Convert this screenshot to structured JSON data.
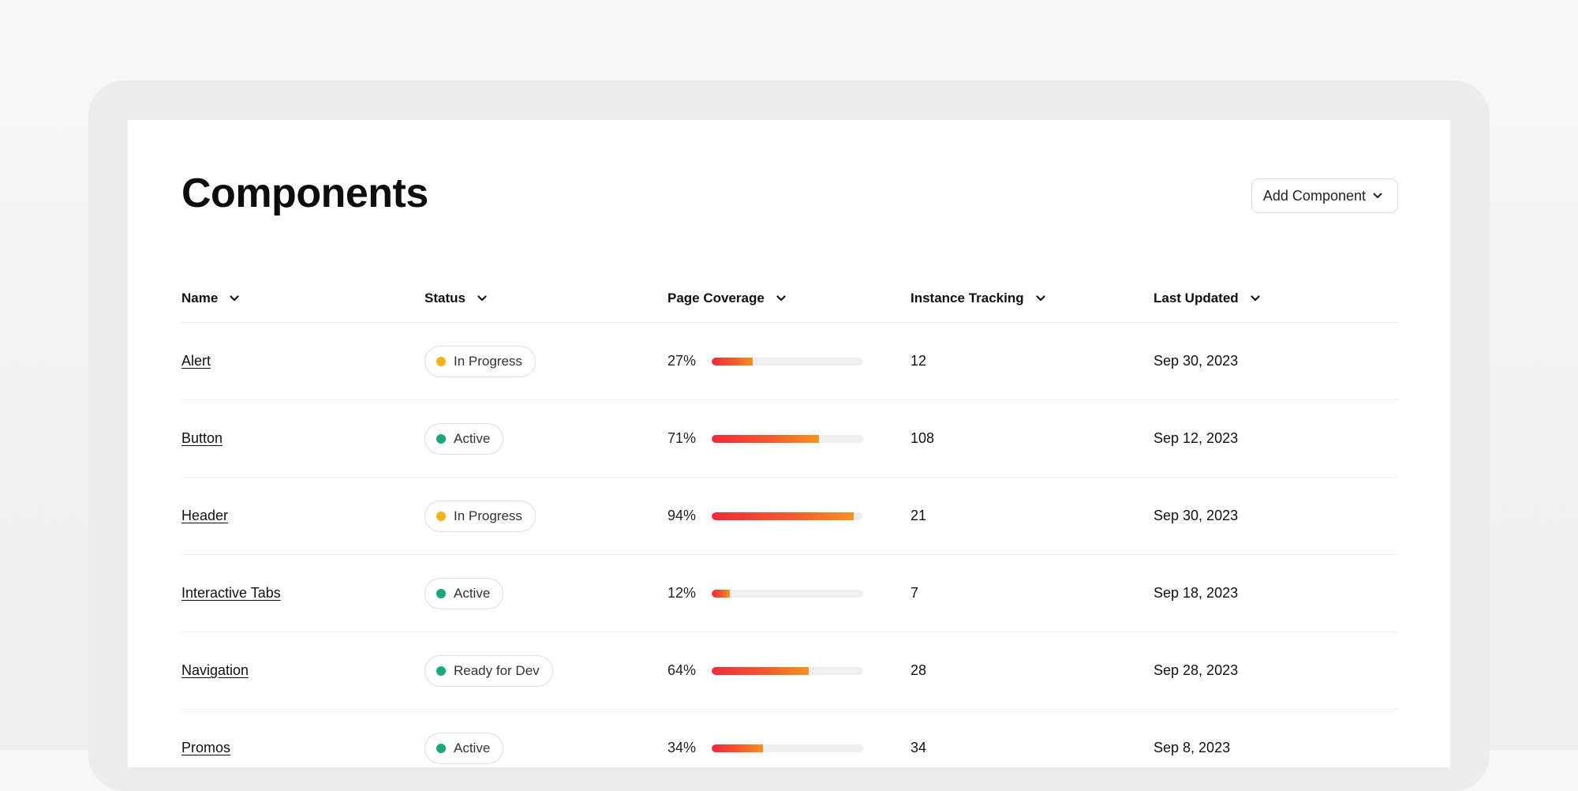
{
  "page": {
    "title": "Components",
    "add_button_label": "Add Component"
  },
  "colors": {
    "in_progress": "#f5b21a",
    "active": "#1aa878",
    "ready_for_dev": "#1aa878",
    "bar_start": "#ee2a3c",
    "bar_end": "#f6921e"
  },
  "table": {
    "columns": [
      {
        "label": "Name"
      },
      {
        "label": "Status"
      },
      {
        "label": "Page Coverage"
      },
      {
        "label": "Instance Tracking"
      },
      {
        "label": "Last Updated"
      }
    ],
    "rows": [
      {
        "name": "Alert",
        "status": "In Progress",
        "status_color": "#f5b21a",
        "coverage_label": "27%",
        "coverage": 27,
        "instances": "12",
        "updated": "Sep 30, 2023"
      },
      {
        "name": "Button",
        "status": "Active",
        "status_color": "#1aa878",
        "coverage_label": "71%",
        "coverage": 71,
        "instances": "108",
        "updated": "Sep 12, 2023"
      },
      {
        "name": "Header",
        "status": "In Progress",
        "status_color": "#f5b21a",
        "coverage_label": "94%",
        "coverage": 94,
        "instances": "21",
        "updated": "Sep 30, 2023"
      },
      {
        "name": "Interactive Tabs",
        "status": "Active",
        "status_color": "#1aa878",
        "coverage_label": "12%",
        "coverage": 12,
        "instances": "7",
        "updated": "Sep 18, 2023"
      },
      {
        "name": "Navigation",
        "status": "Ready for Dev",
        "status_color": "#1aa878",
        "coverage_label": "64%",
        "coverage": 64,
        "instances": "28",
        "updated": "Sep 28, 2023"
      },
      {
        "name": "Promos",
        "status": "Active",
        "status_color": "#1aa878",
        "coverage_label": "34%",
        "coverage": 34,
        "instances": "34",
        "updated": "Sep 8, 2023"
      }
    ]
  }
}
